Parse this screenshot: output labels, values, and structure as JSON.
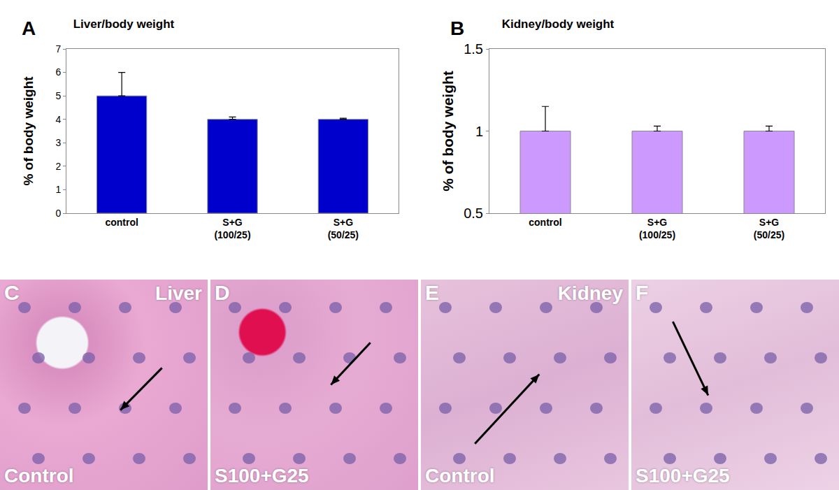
{
  "chart_data": [
    {
      "panel": "A",
      "type": "bar",
      "title": "Liver/body weight",
      "y_label": "% of body weight",
      "categories": [
        "control",
        "S+G (100/25)",
        "S+G (50/25)"
      ],
      "values": [
        5,
        4,
        4
      ],
      "errors": [
        1,
        0.1,
        0.05
      ],
      "color": "#0000cc",
      "ylim": [
        0,
        7
      ],
      "yticks": [
        0,
        1,
        2,
        3,
        4,
        5,
        6,
        7
      ],
      "grid": false
    },
    {
      "panel": "B",
      "type": "bar",
      "title": "Kidney/body weight",
      "y_label": "% of body weight",
      "categories": [
        "control",
        "S+G (100/25)",
        "S+G (50/25)"
      ],
      "values": [
        1,
        1,
        1
      ],
      "errors": [
        0.15,
        0.03,
        0.03
      ],
      "color": "#cc99ff",
      "ylim": [
        0.5,
        1.5
      ],
      "yticks": [
        0.5,
        1,
        1.5
      ],
      "grid": false
    }
  ],
  "images": [
    {
      "letter": "C",
      "organ": "Liver",
      "condition": "Control"
    },
    {
      "letter": "D",
      "condition": "S100+G25"
    },
    {
      "letter": "E",
      "organ": "Kidney",
      "condition": "Control"
    },
    {
      "letter": "F",
      "condition": "S100+G25"
    }
  ]
}
